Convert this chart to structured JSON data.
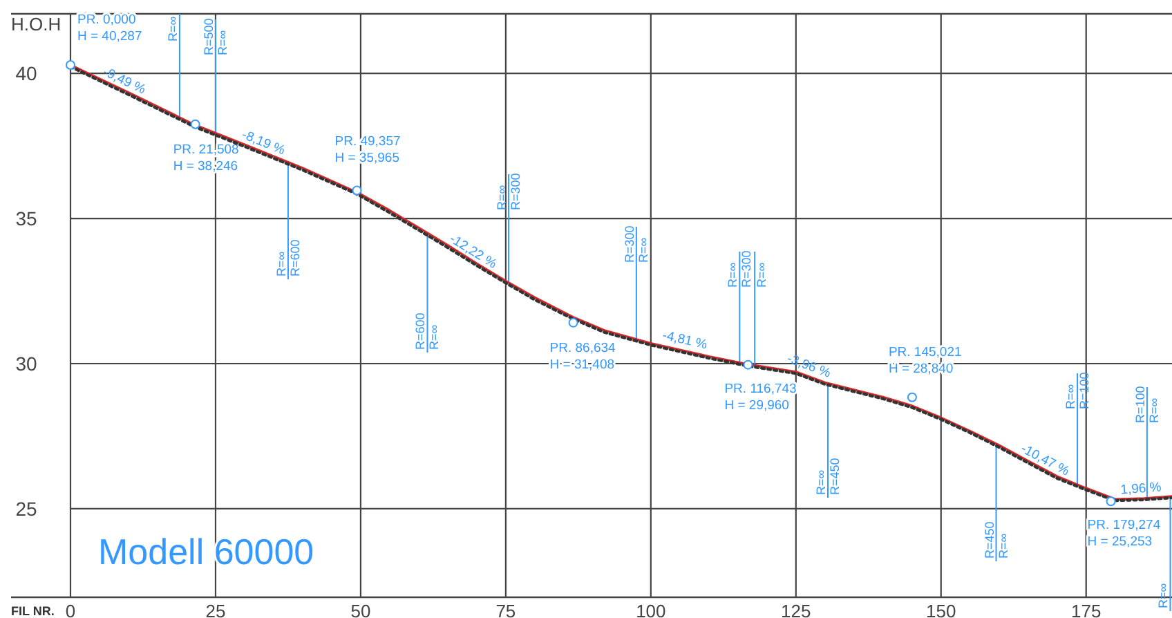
{
  "chart_data": {
    "type": "line",
    "ylabel": "H.O.H",
    "xlabel": "FIL NR.",
    "xlim": [
      0,
      189.8
    ],
    "ylim": [
      21.95,
      42.05
    ],
    "xticks": [
      0,
      25,
      50,
      75,
      100,
      125,
      150,
      175
    ],
    "yticks": [
      25,
      30,
      35,
      40
    ],
    "grid": true,
    "series": [
      {
        "color": "#d62a2a",
        "line_style": "solid",
        "x": [
          0,
          10,
          21.5,
          30,
          40,
          49.4,
          55,
          60,
          65,
          70,
          75,
          80,
          86.6,
          92,
          100,
          110,
          116.7,
          125,
          130,
          135,
          140,
          145,
          150,
          155,
          160,
          165,
          170,
          175,
          180,
          185,
          189.8
        ],
        "values": [
          40.29,
          39.34,
          38.22,
          37.55,
          36.74,
          35.9,
          35.28,
          34.68,
          34.08,
          33.45,
          32.85,
          32.28,
          31.6,
          31.15,
          30.7,
          30.25,
          29.98,
          29.72,
          29.35,
          29.1,
          28.85,
          28.55,
          28.14,
          27.68,
          27.19,
          26.65,
          26.12,
          25.71,
          25.33,
          25.36,
          25.43
        ]
      },
      {
        "color": "#333333",
        "line_style": "dotted",
        "x": [
          0,
          10,
          21.5,
          30,
          40,
          49.4,
          55,
          60,
          65,
          70,
          75,
          80,
          86.6,
          92,
          100,
          110,
          116.7,
          125,
          130,
          135,
          140,
          145,
          150,
          155,
          160,
          165,
          170,
          175,
          180,
          185,
          189.8
        ],
        "values": [
          40.23,
          39.27,
          38.15,
          37.48,
          36.67,
          35.84,
          35.2,
          34.6,
          34.0,
          33.38,
          32.78,
          32.2,
          31.54,
          31.08,
          30.64,
          30.19,
          29.92,
          29.66,
          29.29,
          29.04,
          28.79,
          28.49,
          28.08,
          27.62,
          27.12,
          26.58,
          26.05,
          25.65,
          25.28,
          25.31,
          25.38
        ]
      },
      {
        "type": "scatter",
        "color": "#3399ff",
        "marker": "circle",
        "x": [
          0,
          21.508,
          49.357,
          86.634,
          116.743,
          145.021,
          179.274
        ],
        "values": [
          40.287,
          38.246,
          35.965,
          31.408,
          29.96,
          28.84,
          25.253
        ]
      }
    ],
    "annotations": [
      {
        "text": "PR. 0,000\nH = 40,287",
        "x": 0,
        "y": 40.287
      },
      {
        "text": "PR. 21,508\nH = 38,246",
        "x": 21.508,
        "y": 38.246
      },
      {
        "text": "PR. 49,357\nH = 35,965",
        "x": 49.357,
        "y": 35.965
      },
      {
        "text": "PR. 86,634\nH = 31,408",
        "x": 86.634,
        "y": 31.408
      },
      {
        "text": "PR. 116,743\nH = 29,960",
        "x": 116.743,
        "y": 29.96
      },
      {
        "text": "PR. 145,021\nH = 28,840",
        "x": 145.021,
        "y": 28.84
      },
      {
        "text": "PR. 179,274\nH = 25,253",
        "x": 179.274,
        "y": 25.253
      },
      {
        "text": "-9,49 %",
        "x": 9,
        "y": 39.43
      },
      {
        "text": "-8,19 %",
        "x": 33,
        "y": 37.3
      },
      {
        "text": "-12,22 %",
        "x": 69,
        "y": 33.56
      },
      {
        "text": "-4,81 %",
        "x": 105.7,
        "y": 30.49
      },
      {
        "text": "-3,96 %",
        "x": 127,
        "y": 29.6
      },
      {
        "text": "-10,47 %",
        "x": 167.6,
        "y": 26.37
      },
      {
        "text": "1,96 %",
        "x": 188,
        "y": 25.42
      },
      {
        "text": "R=∞",
        "x": 18.8,
        "y": 38.5
      },
      {
        "text": "R=500",
        "x": 25,
        "y": 37.9
      },
      {
        "text": "R=∞",
        "x": 25,
        "y": 37.9
      },
      {
        "text": "R=∞",
        "x": 37.5,
        "y": 36.9
      },
      {
        "text": "R=600",
        "x": 37.5,
        "y": 36.9
      },
      {
        "text": "R=600",
        "x": 61.5,
        "y": 34.5
      },
      {
        "text": "R=∞",
        "x": 61.5,
        "y": 34.5
      },
      {
        "text": "R=∞",
        "x": 75.5,
        "y": 32.8
      },
      {
        "text": "R=300",
        "x": 75.5,
        "y": 32.8
      },
      {
        "text": "R=300",
        "x": 97.5,
        "y": 30.85
      },
      {
        "text": "R=∞",
        "x": 97.5,
        "y": 30.85
      },
      {
        "text": "R=∞",
        "x": 115.3,
        "y": 30.02
      },
      {
        "text": "R=300",
        "x": 115.3,
        "y": 30.02
      },
      {
        "text": "R=∞",
        "x": 117.9,
        "y": 29.9
      },
      {
        "text": "R=∞",
        "x": 130.5,
        "y": 29.33
      },
      {
        "text": "R=450",
        "x": 130.5,
        "y": 29.33
      },
      {
        "text": "R=450",
        "x": 159.5,
        "y": 27.25
      },
      {
        "text": "R=∞",
        "x": 159.5,
        "y": 27.25
      },
      {
        "text": "R=∞",
        "x": 173.5,
        "y": 25.82
      },
      {
        "text": "R=100",
        "x": 173.5,
        "y": 25.82
      },
      {
        "text": "R=100",
        "x": 185.5,
        "y": 25.37
      },
      {
        "text": "R=∞",
        "x": 185.5,
        "y": 25.37
      },
      {
        "text": "R=∞",
        "x": 189.5,
        "y": 25.43
      },
      "Modell 60000"
    ]
  }
}
